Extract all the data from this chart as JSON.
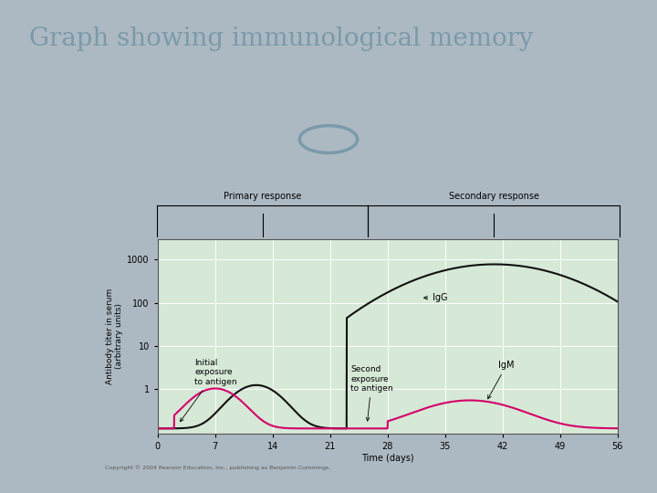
{
  "title": "Graph showing immunological memory",
  "title_color": "#7a9aaa",
  "title_fontsize": 20,
  "slide_bg": "#adb9c2",
  "title_bg": "#ffffff",
  "panel_bg": "#ffffff",
  "plot_bg": "#d6e8d6",
  "xlabel": "Time (days)",
  "ylabel": "Antibody titer in serum\n(arbitrary units)",
  "xticks": [
    0,
    7,
    14,
    21,
    28,
    35,
    42,
    49,
    56
  ],
  "xlim": [
    0,
    56
  ],
  "ylim_log": [
    0.09,
    3000
  ],
  "primary_label": "Primary response",
  "secondary_label": "Secondary response",
  "IgG_label": "IgG",
  "IgM_label": "IgM",
  "initial_exposure_label": "Initial\nexposure\nto antigen",
  "second_exposure_label": "Second\nexposure\nto antigen",
  "copyright_text": "Copyright © 2004 Pearson Education, Inc., publishing as Benjamin Cummings.",
  "igG_color": "#111111",
  "igM_color": "#d4006a",
  "igG_linewidth": 1.5,
  "igM_linewidth": 1.5,
  "circle_color": "#7a9aaa",
  "separator_color": "#c0c8cc"
}
